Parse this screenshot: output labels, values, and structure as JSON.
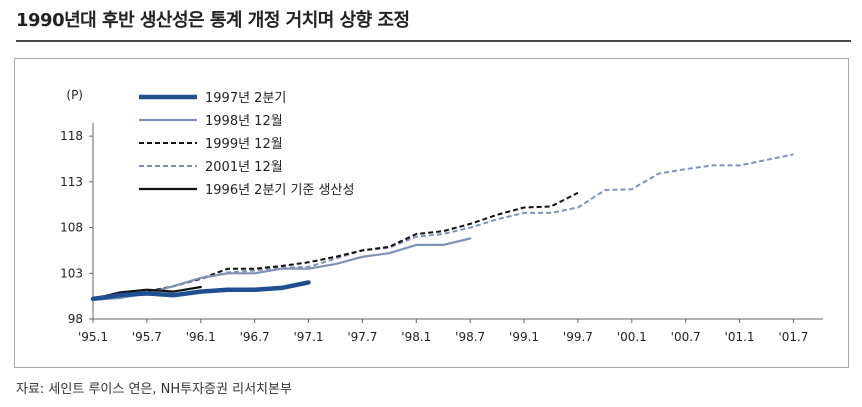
{
  "title": "1990년대 후반 생산성은 통계 개정 거치며 상향 조정",
  "source": "자료: 세인트 루이스 연은, NH투자증권 리서치본부",
  "chart_data": {
    "type": "line",
    "y_unit": "(P)",
    "ylim": [
      98,
      119
    ],
    "yticks": [
      98,
      103,
      108,
      113,
      118
    ],
    "xlim": [
      0,
      26.8
    ],
    "x_tick_labels": [
      "'95.1",
      "'95.7",
      "'96.1",
      "'96.7",
      "'97.1",
      "'97.7",
      "'98.1",
      "'98.7",
      "'99.1",
      "'99.7",
      "'00.1",
      "'00.7",
      "'01.1",
      "'01.7"
    ],
    "x_tick_positions": [
      0,
      2,
      4,
      6,
      8,
      10,
      12,
      14,
      16,
      18,
      20,
      22,
      24,
      26
    ],
    "x_positions_note_unit": "quarters since '95.1",
    "series": [
      {
        "name": "1997년 2분기",
        "color": "#1f4e91",
        "style": "solid-thick",
        "x": [
          0,
          1,
          2,
          3,
          4,
          5,
          6,
          7,
          8
        ],
        "y": [
          100.2,
          100.6,
          100.8,
          100.6,
          101.0,
          101.2,
          101.2,
          101.4,
          102.0
        ]
      },
      {
        "name": "1998년 12월",
        "color": "#7f93b8",
        "style": "solid",
        "x": [
          0,
          1,
          2,
          3,
          4,
          5,
          6,
          7,
          8,
          9,
          10,
          11,
          12,
          13,
          14
        ],
        "y": [
          100.1,
          100.3,
          100.8,
          101.6,
          102.5,
          103.0,
          103.0,
          103.5,
          103.5,
          104.0,
          104.8,
          105.2,
          106.1,
          106.1,
          106.8
        ]
      },
      {
        "name": "1999년 12월",
        "color": "#111111",
        "style": "dashed",
        "x": [
          0,
          1,
          2,
          3,
          4,
          5,
          6,
          7,
          8,
          9,
          10,
          11,
          12,
          13,
          14,
          15,
          16,
          17,
          18
        ],
        "y": [
          100.2,
          100.4,
          101.0,
          101.6,
          102.4,
          103.5,
          103.5,
          103.8,
          104.2,
          104.8,
          105.5,
          105.9,
          107.3,
          107.6,
          108.4,
          109.4,
          110.2,
          110.3,
          111.8
        ]
      },
      {
        "name": "2001년 12월",
        "color": "#7f93b8",
        "style": "dashed",
        "x": [
          0,
          1,
          2,
          3,
          4,
          5,
          6,
          7,
          8,
          9,
          10,
          11,
          12,
          13,
          14,
          15,
          16,
          17,
          18,
          19,
          20,
          21,
          22,
          23,
          24,
          25,
          26
        ],
        "y": [
          100.1,
          100.4,
          100.8,
          101.6,
          102.4,
          103.1,
          103.3,
          103.6,
          103.7,
          104.6,
          105.5,
          105.8,
          107.0,
          107.3,
          108.0,
          108.9,
          109.6,
          109.6,
          110.2,
          112.1,
          112.2,
          113.9,
          114.4,
          114.8,
          114.8,
          115.4,
          116.0
        ]
      },
      {
        "name": "1996년 2분기 기준 생산성",
        "color": "#111111",
        "style": "solid",
        "x": [
          0,
          1,
          2,
          3,
          4
        ],
        "y": [
          100.2,
          100.9,
          101.2,
          101.0,
          101.5
        ]
      }
    ]
  }
}
